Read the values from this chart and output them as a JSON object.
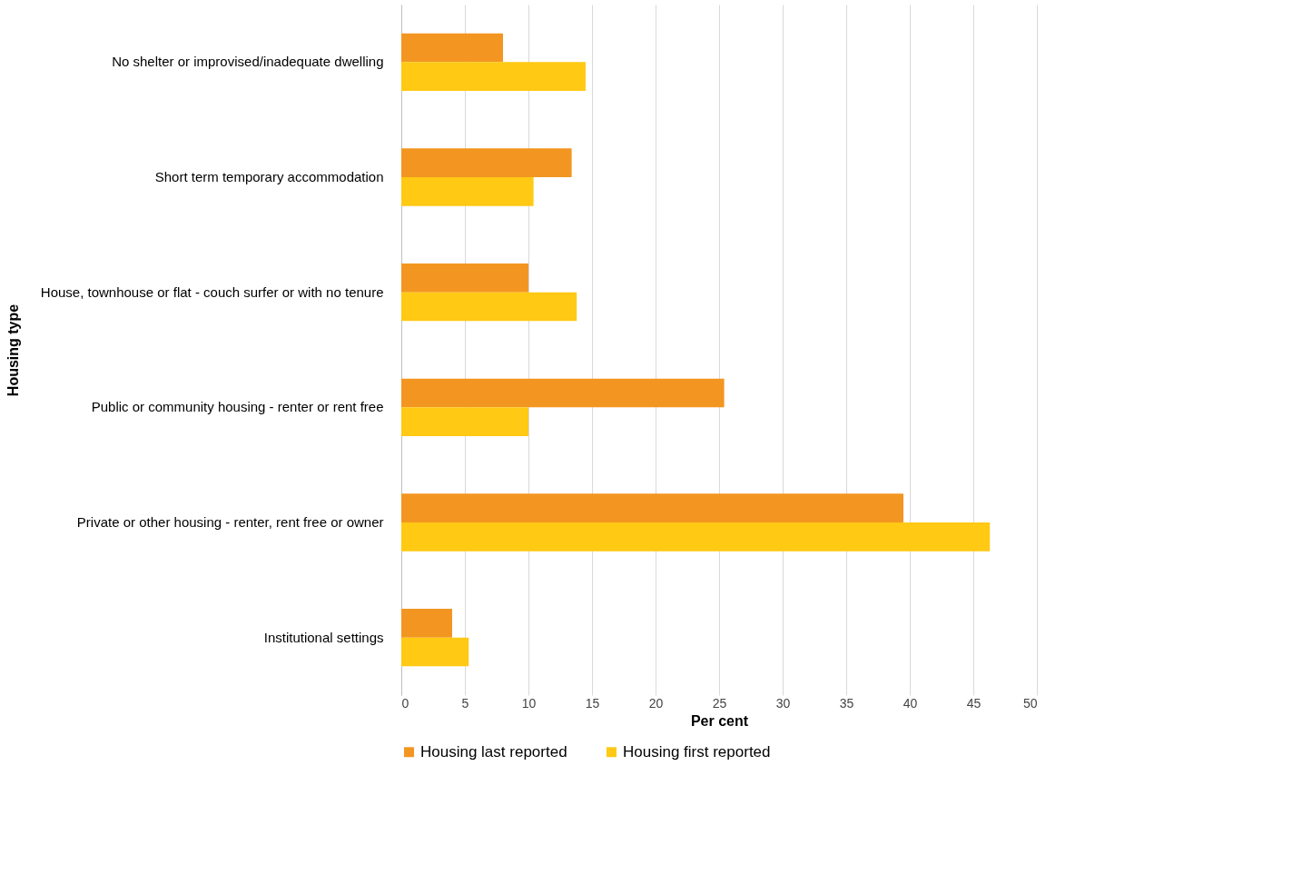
{
  "chart_data": {
    "type": "bar",
    "orientation": "horizontal",
    "xlabel": "Per cent",
    "ylabel": "Housing type",
    "categories": [
      "No shelter or improvised/inadequate dwelling",
      "Short term temporary accommodation",
      "House, townhouse or flat - couch surfer or with no tenure",
      "Public or community housing - renter or rent free",
      "Private or other housing - renter, rent free or owner",
      "Institutional settings"
    ],
    "series": [
      {
        "name": "Housing last reported",
        "color": "#f39621",
        "values": [
          8.0,
          13.4,
          10.0,
          25.4,
          39.5,
          4.0
        ]
      },
      {
        "name": "Housing first reported",
        "color": "#ffc914",
        "values": [
          14.5,
          10.4,
          13.8,
          10.0,
          46.3,
          5.3
        ]
      }
    ],
    "xlim": [
      0,
      50
    ],
    "xticks": [
      0,
      5,
      10,
      15,
      20,
      25,
      30,
      35,
      40,
      45,
      50
    ],
    "grid": "x",
    "legend": "bottom"
  }
}
